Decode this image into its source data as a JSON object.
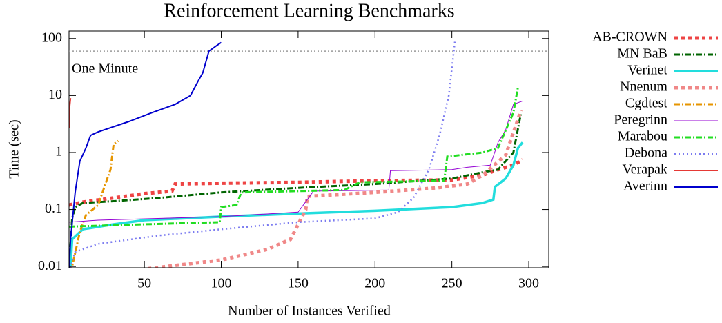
{
  "chart_data": {
    "type": "line",
    "title": "Reinforcement Learning Benchmarks",
    "x_label": "Number of Instances Verified",
    "y_label": "Time (sec)",
    "xlim": [
      1,
      313
    ],
    "xticks": [
      50,
      100,
      150,
      200,
      250,
      300
    ],
    "ylim": [
      0.0095,
      135
    ],
    "yticks": [
      0.01,
      0.1,
      1,
      10,
      100
    ],
    "ylog": true,
    "legend": "outside right",
    "reference_line": {
      "value": 60,
      "label": "One Minute",
      "color": "#999999"
    },
    "series": [
      {
        "name": "AB-CROWN",
        "color": "#ee4444",
        "style": "dotted-thick",
        "x": [
          1,
          10,
          30,
          50,
          68,
          70,
          100,
          150,
          200,
          250,
          270,
          280,
          290,
          296
        ],
        "values": [
          0.12,
          0.135,
          0.16,
          0.19,
          0.21,
          0.28,
          0.29,
          0.3,
          0.32,
          0.33,
          0.4,
          0.5,
          0.6,
          0.75
        ]
      },
      {
        "name": "MN BaB",
        "color": "#006400",
        "style": "dashdot",
        "x": [
          1,
          3,
          5,
          10,
          30,
          60,
          100,
          150,
          200,
          250,
          270,
          280,
          290,
          295
        ],
        "values": [
          0.009,
          0.07,
          0.11,
          0.13,
          0.14,
          0.16,
          0.2,
          0.24,
          0.28,
          0.35,
          0.45,
          0.5,
          1,
          5
        ]
      },
      {
        "name": "Verinet",
        "color": "#22dddd",
        "style": "solid-thick",
        "x": [
          2,
          3,
          10,
          30,
          50,
          100,
          150,
          200,
          250,
          270,
          277,
          278,
          285,
          290,
          293,
          296
        ],
        "values": [
          0.01,
          0.03,
          0.045,
          0.055,
          0.065,
          0.075,
          0.085,
          0.095,
          0.11,
          0.13,
          0.15,
          0.25,
          0.35,
          0.6,
          1.2,
          1.5
        ]
      },
      {
        "name": "Nnenum",
        "color": "#f08888",
        "style": "dotted-thick",
        "x": [
          30,
          50,
          100,
          130,
          145,
          155,
          156,
          200,
          240,
          260,
          270,
          285,
          295
        ],
        "values": [
          0.008,
          0.009,
          0.013,
          0.02,
          0.03,
          0.1,
          0.17,
          0.2,
          0.24,
          0.28,
          0.4,
          0.9,
          5.5
        ]
      },
      {
        "name": "Cgdtest",
        "color": "#e69500",
        "style": "dashdot",
        "x": [
          1,
          3,
          8,
          12,
          20,
          25,
          28,
          30,
          33
        ],
        "values": [
          0.005,
          0.01,
          0.04,
          0.08,
          0.12,
          0.3,
          0.5,
          1.4,
          1.6
        ]
      },
      {
        "name": "Peregrinn",
        "color": "#9400d3",
        "style": "solid-thin",
        "x": [
          1,
          20,
          100,
          150,
          160,
          209,
          210,
          250,
          260,
          275,
          280,
          285,
          290,
          296
        ],
        "values": [
          0.06,
          0.065,
          0.075,
          0.09,
          0.21,
          0.22,
          0.48,
          0.5,
          0.55,
          0.6,
          1.5,
          2.5,
          7,
          8
        ]
      },
      {
        "name": "Marabou",
        "color": "#22dd22",
        "style": "dashdot",
        "x": [
          1,
          50,
          99,
          100,
          110,
          113,
          180,
          190,
          245,
          247,
          270,
          280,
          290,
          293
        ],
        "values": [
          0.05,
          0.055,
          0.06,
          0.11,
          0.12,
          0.2,
          0.22,
          0.3,
          0.32,
          0.85,
          1,
          1.2,
          5,
          14
        ]
      },
      {
        "name": "Debona",
        "color": "#7b7bf0",
        "style": "dotted",
        "x": [
          1,
          5,
          20,
          60,
          100,
          150,
          200,
          215,
          225,
          235,
          242,
          248,
          252
        ],
        "values": [
          0.008,
          0.018,
          0.025,
          0.035,
          0.045,
          0.06,
          0.07,
          0.09,
          0.16,
          0.5,
          2,
          10,
          90
        ]
      },
      {
        "name": "Verapak",
        "color": "#e53935",
        "style": "solid",
        "x": [
          1,
          1,
          2
        ],
        "values": [
          2.7,
          5,
          9
        ]
      },
      {
        "name": "Averinn",
        "color": "#0000cd",
        "style": "solid",
        "x": [
          1,
          2,
          5,
          8,
          12,
          15,
          20,
          40,
          55,
          70,
          80,
          85,
          88,
          92,
          97,
          100
        ],
        "values": [
          0.008,
          0.03,
          0.2,
          0.7,
          1.2,
          2,
          2.3,
          3.5,
          5,
          7,
          10,
          18,
          25,
          60,
          75,
          85
        ]
      }
    ]
  }
}
